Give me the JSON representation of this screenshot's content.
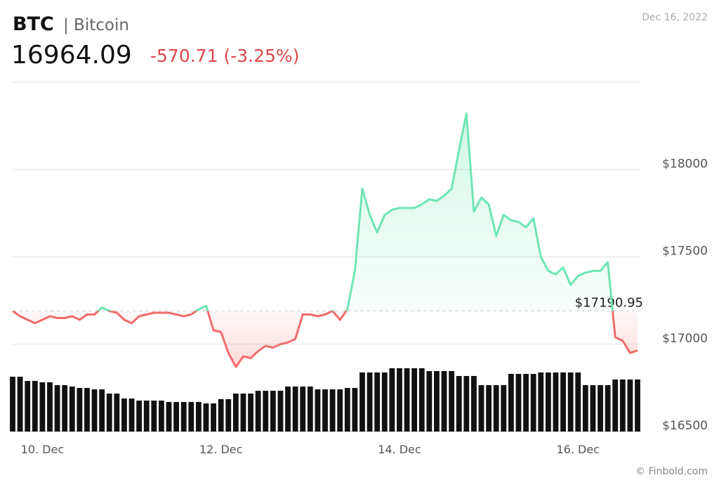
{
  "chart_data": {
    "type": "line",
    "title": "BTC",
    "subtitle": "| Bitcoin",
    "price": "16964.09",
    "change": "-570.71 (-3.25%)",
    "date": "Dec 16, 2022",
    "source": "© Finbold.com",
    "categories": [
      null,
      null,
      null,
      null,
      "10. Dec",
      null,
      null,
      null,
      null,
      null,
      null,
      null,
      null,
      null,
      null,
      null,
      null,
      null,
      null,
      null,
      null,
      null,
      null,
      null,
      null,
      null,
      null,
      null,
      "12. Dec",
      null,
      null,
      null,
      null,
      null,
      null,
      null,
      null,
      null,
      null,
      null,
      null,
      null,
      null,
      null,
      null,
      null,
      null,
      null,
      null,
      null,
      null,
      null,
      "14. Dec",
      null,
      null,
      null,
      null,
      null,
      null,
      null,
      null,
      null,
      null,
      null,
      null,
      null,
      null,
      null,
      null,
      null,
      null,
      null,
      null,
      null,
      null,
      null,
      "16. Dec",
      null,
      null,
      null,
      null,
      null,
      null,
      null,
      null
    ],
    "values": [
      17190,
      17160,
      17140,
      17120,
      17140,
      17160,
      17150,
      17150,
      17160,
      17140,
      17170,
      17170,
      17210,
      17190,
      17180,
      17140,
      17120,
      17160,
      17170,
      17180,
      17180,
      17180,
      17170,
      17160,
      17170,
      17200,
      17220,
      17080,
      17070,
      16950,
      16870,
      16930,
      16920,
      16960,
      16990,
      16980,
      17000,
      17010,
      17030,
      17170,
      17170,
      17160,
      17170,
      17190,
      17140,
      17200,
      17420,
      17890,
      17740,
      17640,
      17740,
      17770,
      17780,
      17780,
      17780,
      17800,
      17830,
      17820,
      17850,
      17890,
      18110,
      18320,
      17760,
      17840,
      17800,
      17620,
      17740,
      17710,
      17700,
      17670,
      17720,
      17500,
      17420,
      17400,
      17440,
      17340,
      17390,
      17410,
      17420,
      17420,
      17470,
      17040,
      17020,
      16950,
      16964.09
    ],
    "volumes": [
      78,
      78,
      72,
      72,
      70,
      70,
      66,
      66,
      64,
      62,
      62,
      60,
      60,
      54,
      54,
      47,
      47,
      44,
      44,
      44,
      44,
      42,
      42,
      42,
      42,
      42,
      40,
      40,
      46,
      46,
      54,
      54,
      54,
      58,
      58,
      58,
      58,
      64,
      64,
      64,
      64,
      60,
      60,
      60,
      60,
      62,
      62,
      84,
      84,
      84,
      84,
      90,
      90,
      90,
      90,
      90,
      86,
      86,
      86,
      86,
      79,
      79,
      79,
      66,
      66,
      66,
      66,
      82,
      82,
      82,
      82,
      84,
      84,
      84,
      84,
      84,
      84,
      66,
      66,
      66,
      66,
      74,
      74,
      74,
      74
    ],
    "up_color": "#6ee6b4",
    "down_color": "#f26b6b",
    "volume_color": "#111111",
    "ylim": [
      16500,
      18500
    ],
    "yticks": [
      {
        "value": 16500,
        "label": "$16500"
      },
      {
        "value": 17000,
        "label": "$17000"
      },
      {
        "value": 17500,
        "label": "$17500"
      },
      {
        "value": 18000,
        "label": "$18000"
      }
    ],
    "baseline": {
      "value": 17190.95,
      "label": "$17190.95"
    },
    "grid": true
  }
}
